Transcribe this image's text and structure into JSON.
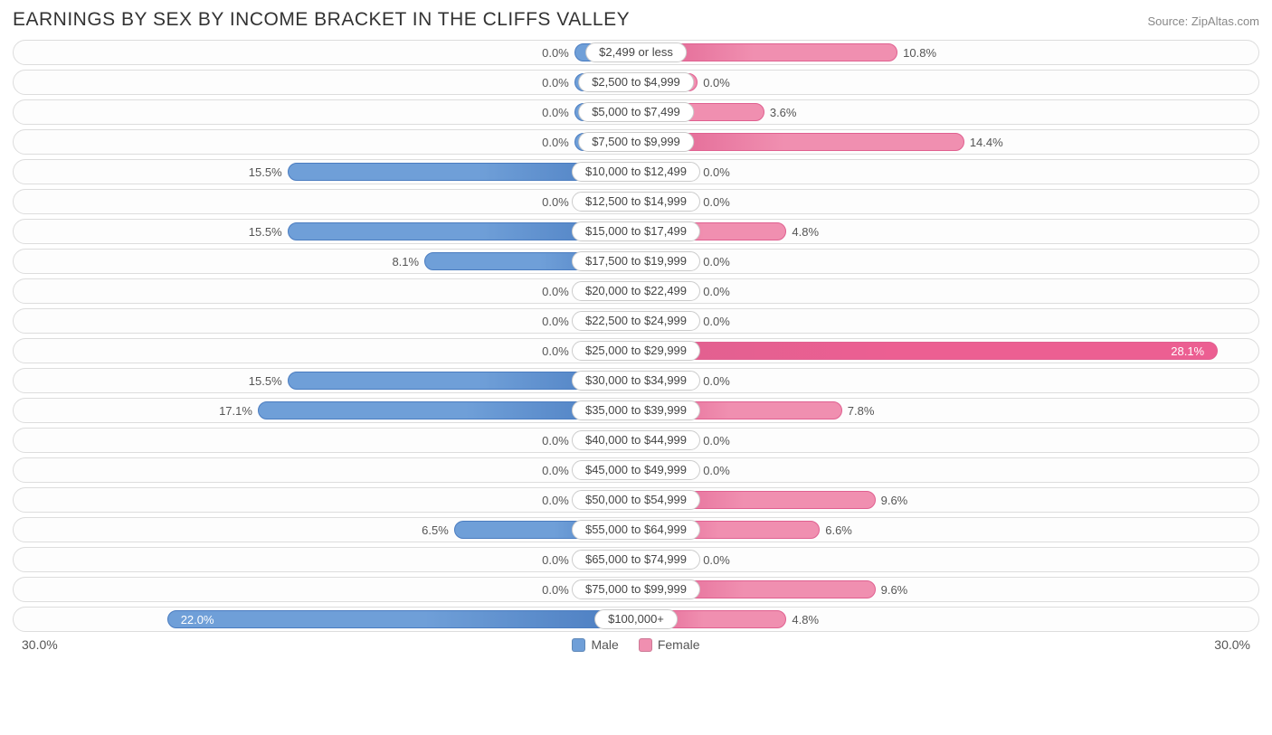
{
  "title": "EARNINGS BY SEX BY INCOME BRACKET IN THE CLIFFS VALLEY",
  "source": "Source: ZipAltas.com",
  "axis_max": 30.0,
  "axis_left_label": "30.0%",
  "axis_right_label": "30.0%",
  "base_bar_pct": 10.0,
  "colors": {
    "male_fill": "#6f9fd8",
    "male_stroke": "#4a7cc0",
    "female_fill": "#f08fb0",
    "female_stroke": "#e06090",
    "female_highlight_fill": "#ec5f92",
    "row_border": "#dddddd",
    "text": "#555555",
    "title_text": "#333333",
    "inside_text": "#ffffff"
  },
  "legend": {
    "male": "Male",
    "female": "Female"
  },
  "rows": [
    {
      "category": "$2,499 or less",
      "male": 0.0,
      "female": 10.8,
      "highlight": false
    },
    {
      "category": "$2,500 to $4,999",
      "male": 0.0,
      "female": 0.0,
      "highlight": false
    },
    {
      "category": "$5,000 to $7,499",
      "male": 0.0,
      "female": 3.6,
      "highlight": false
    },
    {
      "category": "$7,500 to $9,999",
      "male": 0.0,
      "female": 14.4,
      "highlight": false
    },
    {
      "category": "$10,000 to $12,499",
      "male": 15.5,
      "female": 0.0,
      "highlight": false
    },
    {
      "category": "$12,500 to $14,999",
      "male": 0.0,
      "female": 0.0,
      "highlight": false
    },
    {
      "category": "$15,000 to $17,499",
      "male": 15.5,
      "female": 4.8,
      "highlight": false
    },
    {
      "category": "$17,500 to $19,999",
      "male": 8.1,
      "female": 0.0,
      "highlight": false
    },
    {
      "category": "$20,000 to $22,499",
      "male": 0.0,
      "female": 0.0,
      "highlight": false
    },
    {
      "category": "$22,500 to $24,999",
      "male": 0.0,
      "female": 0.0,
      "highlight": false
    },
    {
      "category": "$25,000 to $29,999",
      "male": 0.0,
      "female": 28.1,
      "highlight": true
    },
    {
      "category": "$30,000 to $34,999",
      "male": 15.5,
      "female": 0.0,
      "highlight": false
    },
    {
      "category": "$35,000 to $39,999",
      "male": 17.1,
      "female": 7.8,
      "highlight": false
    },
    {
      "category": "$40,000 to $44,999",
      "male": 0.0,
      "female": 0.0,
      "highlight": false
    },
    {
      "category": "$45,000 to $49,999",
      "male": 0.0,
      "female": 0.0,
      "highlight": false
    },
    {
      "category": "$50,000 to $54,999",
      "male": 0.0,
      "female": 9.6,
      "highlight": false
    },
    {
      "category": "$55,000 to $64,999",
      "male": 6.5,
      "female": 6.6,
      "highlight": false
    },
    {
      "category": "$65,000 to $74,999",
      "male": 0.0,
      "female": 0.0,
      "highlight": false
    },
    {
      "category": "$75,000 to $99,999",
      "male": 0.0,
      "female": 9.6,
      "highlight": false
    },
    {
      "category": "$100,000+",
      "male": 22.0,
      "female": 4.8,
      "highlight": false
    }
  ]
}
